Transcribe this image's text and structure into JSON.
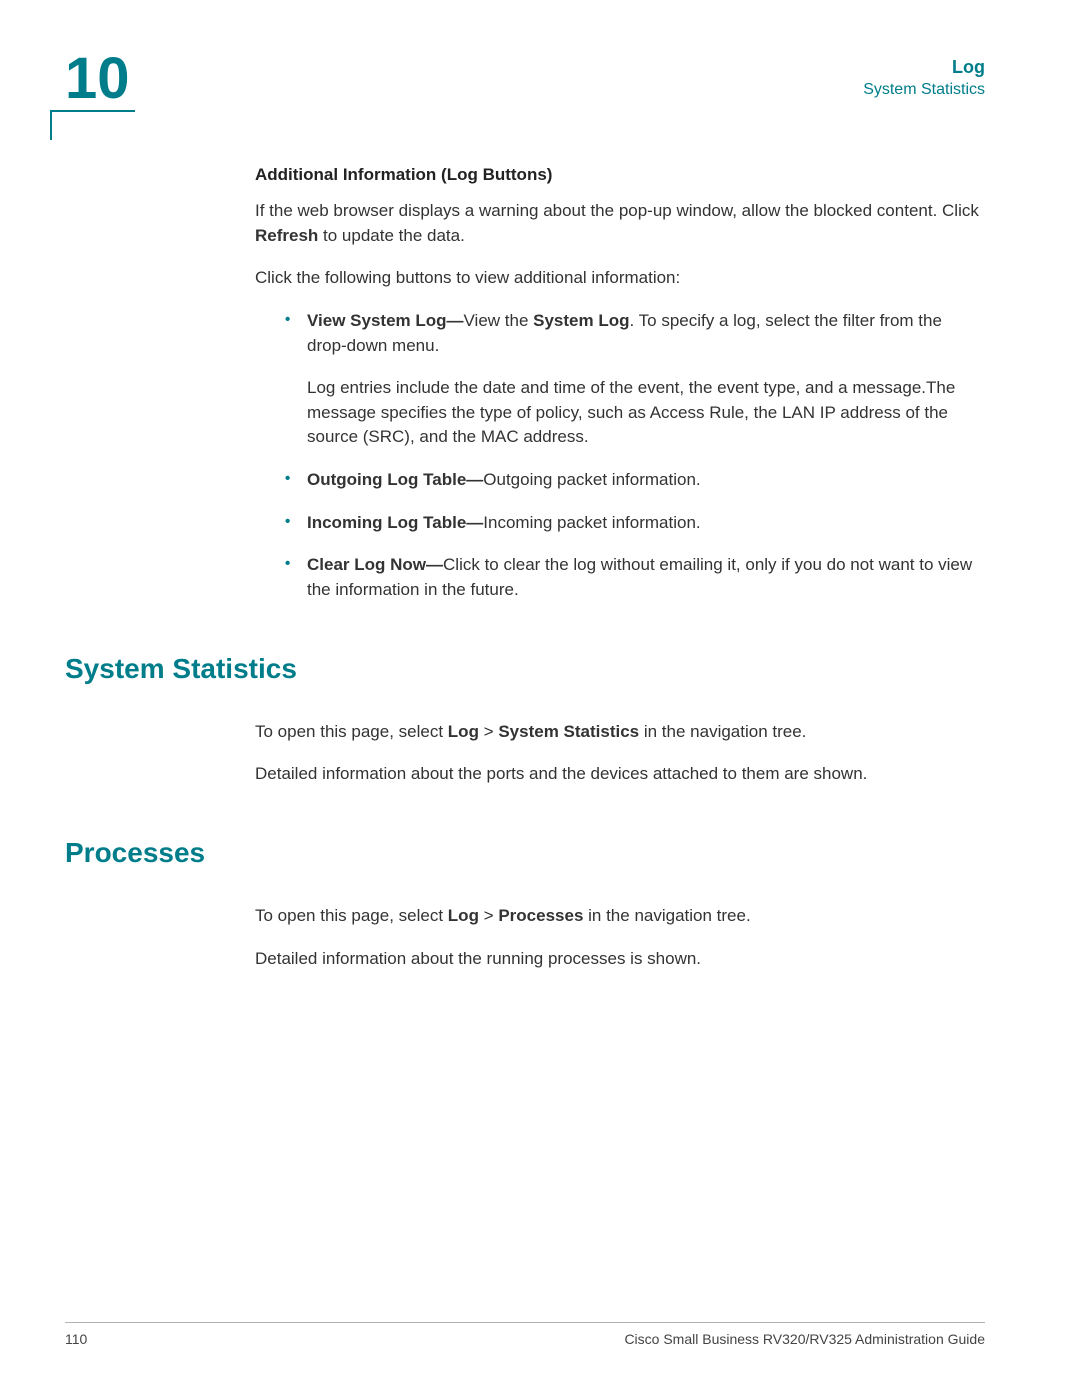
{
  "colors": {
    "accent": "#007d8a",
    "text": "#333333",
    "rule": "#b3b3b3",
    "background": "#ffffff"
  },
  "typography": {
    "body_fontsize_pt": 12,
    "heading_fontsize_pt": 21,
    "chapter_fontsize_pt": 44,
    "font_family": "Arial, Helvetica, sans-serif"
  },
  "chapter": {
    "number": "10"
  },
  "header": {
    "title": "Log",
    "subtitle": "System Statistics"
  },
  "body": {
    "subhead1": "Additional Information (Log Buttons)",
    "para1_a": "If the web browser displays a warning about the pop-up window, allow the blocked content. Click ",
    "para1_bold": "Refresh",
    "para1_b": " to update the data.",
    "para2": "Click the following buttons to view additional information:",
    "bullets": [
      {
        "lead": "View System Log—",
        "rest_a": "View the ",
        "rest_bold": "System Log",
        "rest_b": ". To specify a log, select the filter from the drop-down menu.",
        "sub": "Log entries include the date and time of the event, the event type, and a message.The message specifies the type of policy, such as Access Rule, the LAN IP address of the source (SRC), and the MAC address."
      },
      {
        "lead": "Outgoing Log Table—",
        "rest": "Outgoing packet information."
      },
      {
        "lead": "Incoming Log Table—",
        "rest": "Incoming packet information."
      },
      {
        "lead": "Clear Log Now—",
        "rest": "Click to clear the log without emailing it, only if you do not want to view the information in the future."
      }
    ]
  },
  "sections": {
    "sysstats": {
      "heading": "System Statistics",
      "p1_a": "To open this page, select ",
      "p1_b1": "Log",
      "p1_sep": " > ",
      "p1_b2": "System Statistics",
      "p1_c": " in the navigation tree.",
      "p2": "Detailed information about the ports and the devices attached to them are shown."
    },
    "processes": {
      "heading": "Processes",
      "p1_a": "To open this page, select ",
      "p1_b1": "Log",
      "p1_sep": " > ",
      "p1_b2": "Processes",
      "p1_c": " in the navigation tree.",
      "p2": "Detailed information about the running processes is shown."
    }
  },
  "footer": {
    "page": "110",
    "guide": "Cisco Small Business RV320/RV325 Administration Guide"
  }
}
